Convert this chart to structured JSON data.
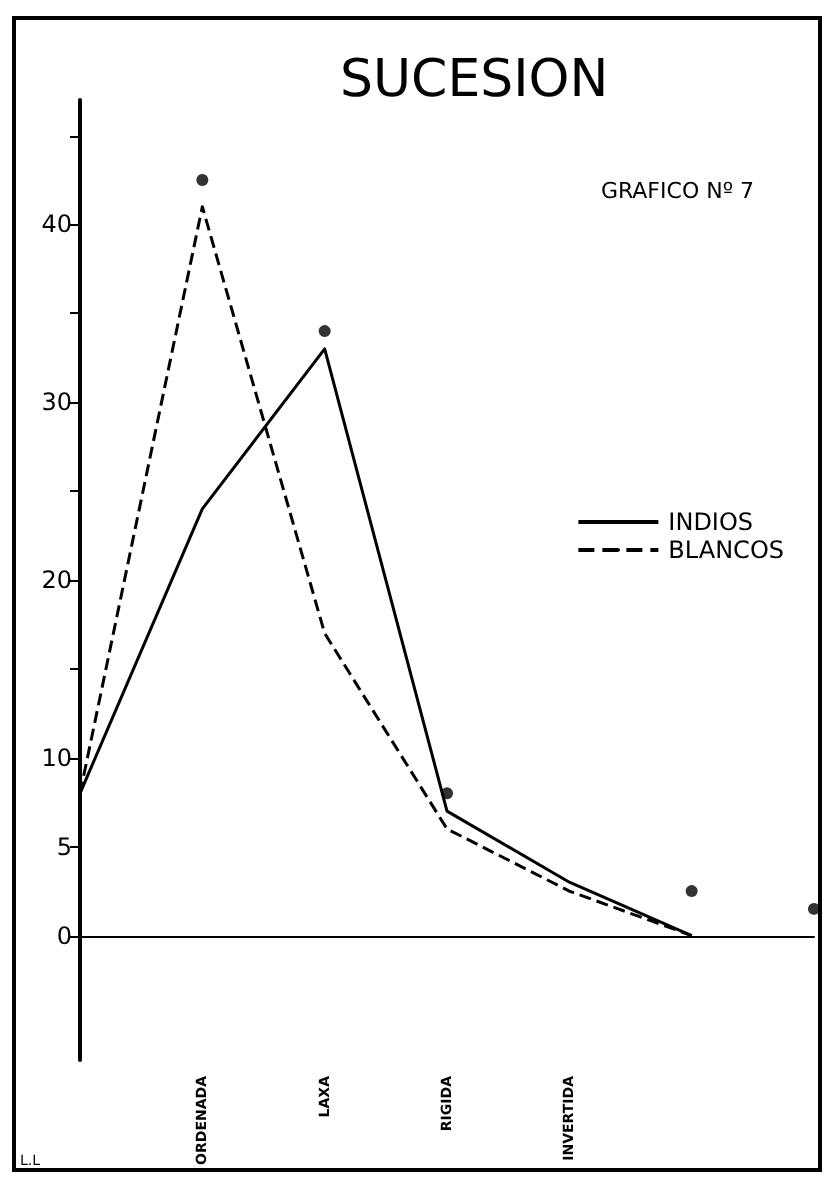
{
  "chart_data": {
    "type": "line",
    "title": "SUCESION",
    "annotations": [
      "GRAFICO Nº 7",
      "L.L"
    ],
    "categories": [
      null,
      "ORDENADA",
      "LAXA",
      "RIGIDA",
      "INVERTIDA",
      null,
      null
    ],
    "series": [
      {
        "name": "INDIOS",
        "color": "#000000",
        "line_style": "solid",
        "values": [
          8,
          24,
          33,
          7,
          3,
          0,
          null
        ]
      },
      {
        "name": "BLANCOS",
        "color": "#000000",
        "line_style": "dashed",
        "values": [
          8,
          41,
          17,
          6,
          2.5,
          0,
          null
        ]
      },
      {
        "type": "scatter",
        "color": "#000000",
        "marker": "circle",
        "values": [
          null,
          42.5,
          34,
          8,
          null,
          2.5,
          1.5
        ]
      }
    ],
    "ylim": [
      -7,
      47
    ],
    "yticks": [
      0,
      5,
      10,
      {
        "value": 15,
        "label": null
      },
      20,
      {
        "value": 25,
        "label": null
      },
      30,
      {
        "value": 35,
        "label": null
      },
      40,
      {
        "value": 45,
        "label": null
      }
    ],
    "marker": "none",
    "legend": "right"
  }
}
